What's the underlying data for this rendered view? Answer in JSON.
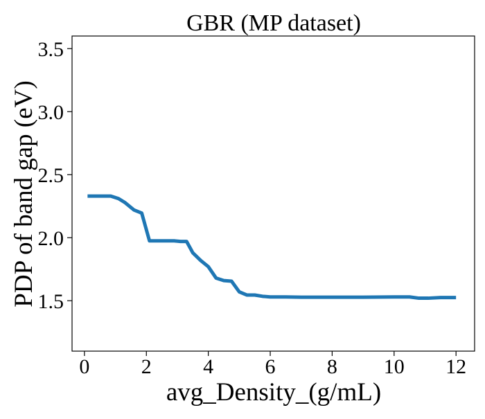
{
  "chart_data": {
    "type": "line",
    "title": "GBR (MP dataset)",
    "xlabel": "avg_Density_(g/mL)",
    "ylabel": "PDP of band gap (eV)",
    "xlim": [
      -0.4,
      12.6
    ],
    "ylim": [
      1.1,
      3.6
    ],
    "xticks": [
      0,
      2,
      4,
      6,
      8,
      10,
      12
    ],
    "xtick_labels": [
      "0",
      "2",
      "4",
      "6",
      "8",
      "10",
      "12"
    ],
    "yticks": [
      1.5,
      2.0,
      2.5,
      3.0,
      3.5
    ],
    "ytick_labels": [
      "1.5",
      "2.0",
      "2.5",
      "3.0",
      "3.5"
    ],
    "grid": false,
    "series": [
      {
        "color": "#1f77b4",
        "x": [
          0.1,
          0.5,
          0.85,
          1.1,
          1.3,
          1.6,
          1.85,
          2.1,
          2.5,
          2.9,
          3.1,
          3.3,
          3.5,
          3.75,
          4.0,
          4.25,
          4.5,
          4.75,
          5.0,
          5.25,
          5.5,
          5.75,
          6.0,
          6.5,
          7.0,
          8.0,
          9.0,
          10.0,
          10.5,
          10.8,
          11.1,
          11.5,
          12.0
        ],
        "y": [
          2.33,
          2.33,
          2.33,
          2.31,
          2.28,
          2.22,
          2.195,
          1.975,
          1.975,
          1.975,
          1.97,
          1.97,
          1.88,
          1.82,
          1.77,
          1.68,
          1.66,
          1.655,
          1.57,
          1.545,
          1.545,
          1.535,
          1.53,
          1.53,
          1.528,
          1.528,
          1.528,
          1.53,
          1.53,
          1.52,
          1.52,
          1.525,
          1.525
        ]
      }
    ]
  }
}
